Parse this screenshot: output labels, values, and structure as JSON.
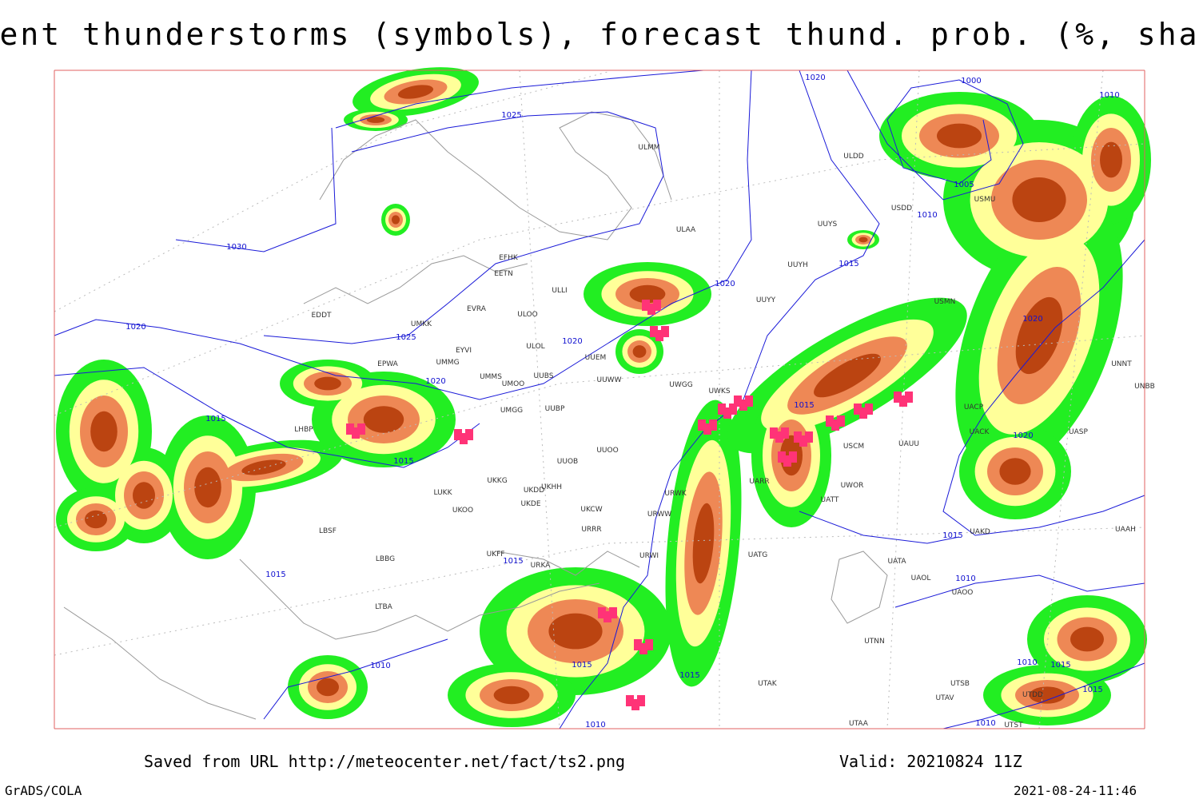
{
  "title": "Current thunderstorms (symbols), forecast thund. prob. (%, shaded)",
  "footer": {
    "saved": "Saved from URL http://meteocenter.net/fact/ts2.png",
    "valid": "Valid: 20210824 11Z",
    "software": "GrADS/COLA",
    "timestamp": "2021-08-24-11:46"
  },
  "isobar_labels": [
    "1020",
    "1025",
    "1030",
    "1020",
    "1025",
    "1020",
    "1020",
    "1020",
    "1015",
    "1015",
    "1015",
    "1015",
    "1015",
    "1015",
    "1015",
    "1015",
    "1015",
    "1010",
    "1005",
    "1000",
    "1010",
    "1020",
    "1020",
    "1010",
    "1010",
    "1010",
    "1010",
    "1010",
    "1015",
    "1015"
  ],
  "station_labels": [
    "ULMM",
    "ULAA",
    "UUYS",
    "UUYH",
    "UUYY",
    "ULDD",
    "USDD",
    "USMU",
    "EFHK",
    "EETN",
    "ULLI",
    "ULOO",
    "EVRA",
    "EDDT",
    "UMKK",
    "EYVI",
    "UMMG",
    "ULOL",
    "UUEM",
    "EPWA",
    "UMMS",
    "UMOO",
    "UUBS",
    "UUWW",
    "UWGG",
    "UWKS",
    "UMGG",
    "UUBP",
    "UUOO",
    "UUOB",
    "UKHH",
    "UKDD",
    "UKKG",
    "UKDE",
    "LUKK",
    "UKOO",
    "UKCW",
    "URWW",
    "URWI",
    "URRR",
    "UKFF",
    "URKA",
    "LBSF",
    "LBBG",
    "LTBA",
    "LHBP",
    "UATG",
    "UARR",
    "URWK",
    "UATT",
    "UWOR",
    "USCM",
    "UAUU",
    "UACP",
    "UACK",
    "UASP",
    "UNNT",
    "UNBB",
    "UAAH",
    "UATA",
    "UAOL",
    "UAOO",
    "UTNN",
    "UTSB",
    "UTAV",
    "UTAA",
    "UTAK",
    "UTST",
    "UTDD",
    "UAKD",
    "USMN"
  ]
}
